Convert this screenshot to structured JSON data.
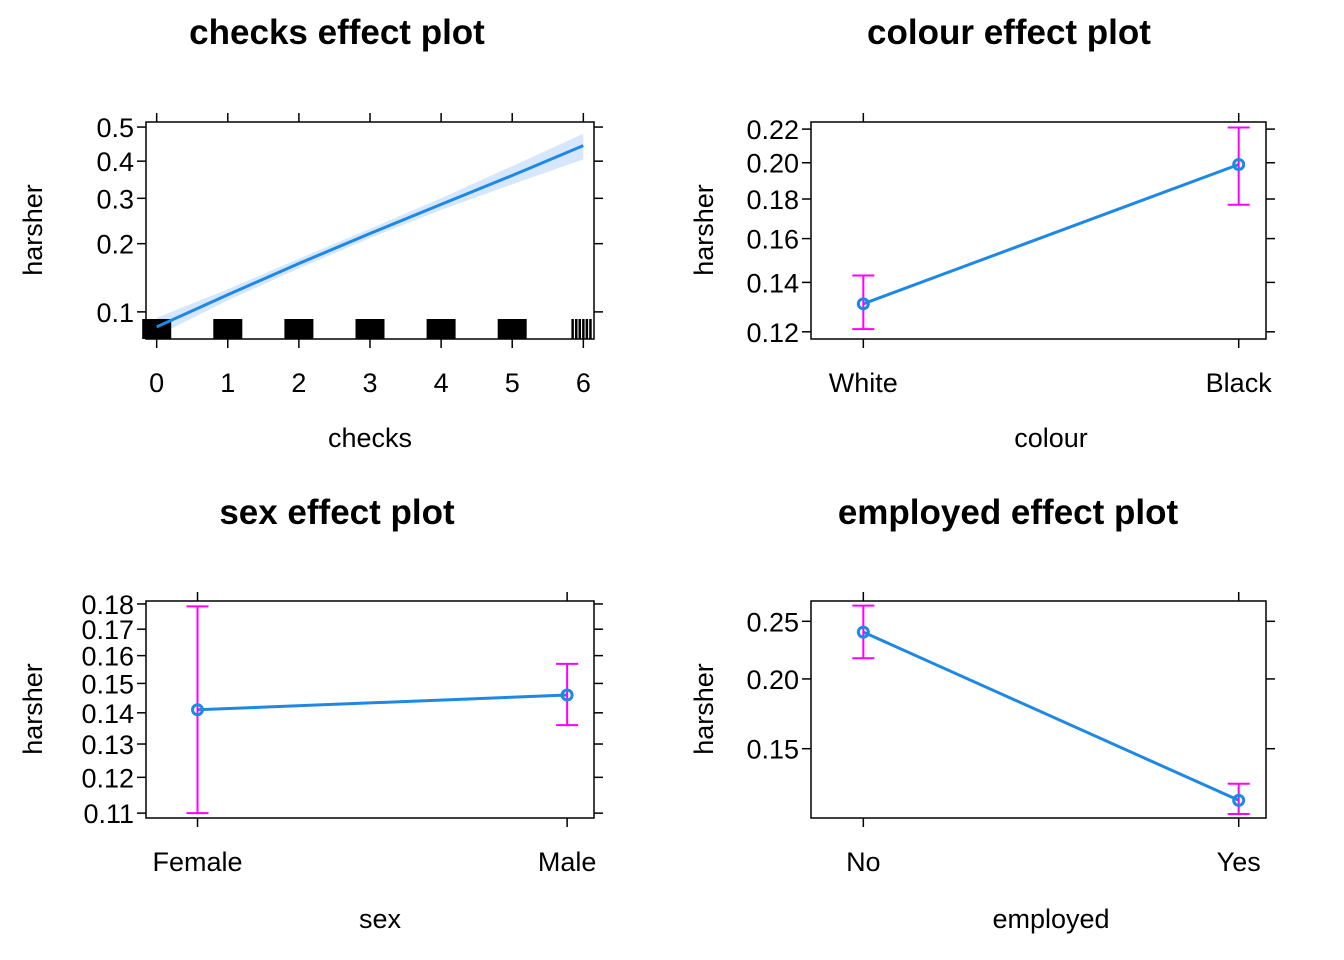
{
  "chart_data": [
    {
      "id": "checks",
      "type": "line",
      "title": "checks effect plot",
      "xlabel": "checks",
      "ylabel": "harsher",
      "y_scale": "logit",
      "x_ticks": [
        0,
        1,
        2,
        3,
        4,
        5,
        6
      ],
      "y_ticks": [
        "0.1",
        "0.2",
        "0.3",
        "0.4",
        "0.5"
      ],
      "xlim": [
        -0.15,
        6.15
      ],
      "ylim": [
        0.0745,
        0.515
      ],
      "x": [
        0,
        1,
        2,
        3,
        4,
        5,
        6
      ],
      "values": [
        0.085,
        0.12,
        0.165,
        0.22,
        0.285,
        0.36,
        0.445
      ],
      "band_lower": [
        0.077,
        0.113,
        0.157,
        0.211,
        0.272,
        0.336,
        0.405
      ],
      "band_upper": [
        0.094,
        0.127,
        0.173,
        0.23,
        0.3,
        0.386,
        0.48
      ],
      "rug": [
        0,
        1,
        2,
        3,
        4,
        5,
        5.85,
        5.9,
        5.95,
        6.0,
        6.05,
        6.1
      ]
    },
    {
      "id": "colour",
      "type": "line",
      "title": "colour effect plot",
      "xlabel": "colour",
      "ylabel": "harsher",
      "y_scale": "logit",
      "categories": [
        "White",
        "Black"
      ],
      "y_ticks": [
        "0.12",
        "0.14",
        "0.16",
        "0.18",
        "0.20",
        "0.22"
      ],
      "ylim": [
        0.1173,
        0.2244
      ],
      "values": [
        0.131,
        0.199
      ],
      "lower": [
        0.121,
        0.177
      ],
      "upper": [
        0.143,
        0.221
      ]
    },
    {
      "id": "sex",
      "type": "line",
      "title": "sex effect plot",
      "xlabel": "sex",
      "ylabel": "harsher",
      "y_scale": "logit",
      "categories": [
        "Female",
        "Male"
      ],
      "y_ticks": [
        "0.11",
        "0.12",
        "0.13",
        "0.14",
        "0.15",
        "0.16",
        "0.17",
        "0.18"
      ],
      "ylim": [
        0.1087,
        0.1812
      ],
      "values": [
        0.141,
        0.146
      ],
      "lower": [
        0.11,
        0.136
      ],
      "upper": [
        0.179,
        0.157
      ]
    },
    {
      "id": "employed",
      "type": "line",
      "title": "employed effect plot",
      "xlabel": "employed",
      "ylabel": "harsher",
      "y_scale": "logit",
      "categories": [
        "No",
        "Yes"
      ],
      "y_ticks": [
        "0.15",
        "0.20",
        "0.25"
      ],
      "ylim": [
        0.111,
        0.2695
      ],
      "values": [
        0.24,
        0.12
      ],
      "lower": [
        0.217,
        0.113
      ],
      "upper": [
        0.265,
        0.129
      ]
    }
  ],
  "colors": {
    "line": "#1E88E5",
    "band": "#cfe3fa",
    "error_bar": "#ff00ff",
    "rug": "#000000"
  }
}
